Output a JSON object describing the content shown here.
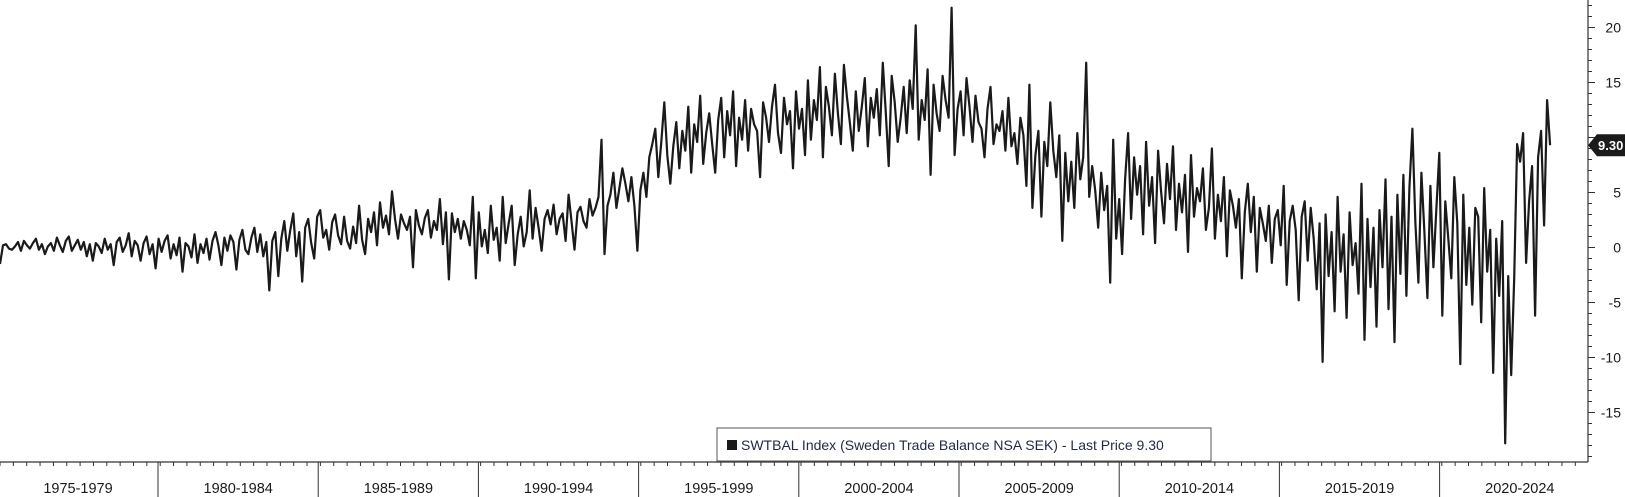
{
  "chart_data": {
    "type": "line",
    "series": [
      {
        "values": [
          -1.5,
          0.2,
          0.3,
          -0.1,
          -0.2,
          0.1,
          0.5,
          -0.3,
          0.6,
          0.2,
          -0.1,
          0.4,
          0.8,
          -0.2,
          0.3,
          -0.6,
          0.1,
          0.4,
          -0.3,
          0.9,
          0.2,
          -0.4,
          0.6,
          1.0,
          -0.3,
          0.2,
          0.7,
          -0.2,
          0.5,
          -0.8,
          0.3,
          -1.2,
          0.4,
          0.1,
          -0.5,
          0.8,
          -0.2,
          0.3,
          -1.6,
          0.5,
          0.9,
          -0.4,
          0.2,
          1.3,
          -0.8,
          0.6,
          0.2,
          -1.2,
          0.4,
          1.0,
          -0.6,
          0.3,
          -1.9,
          0.8,
          -0.4,
          0.6,
          1.1,
          -1.0,
          0.3,
          -0.7,
          0.9,
          -2.2,
          0.4,
          0.1,
          -0.9,
          1.2,
          -1.4,
          0.3,
          -0.5,
          0.8,
          -1.1,
          0.6,
          1.4,
          0.2,
          -1.6,
          0.9,
          -0.3,
          1.1,
          0.5,
          -2.0,
          0.7,
          1.6,
          -0.2,
          -0.6,
          0.9,
          1.8,
          -0.4,
          1.2,
          -0.8,
          0.5,
          -3.9,
          0.6,
          1.4,
          -2.6,
          0.8,
          2.4,
          -0.3,
          1.6,
          3.1,
          -0.8,
          1.4,
          -3.1,
          1.8,
          2.6,
          0.4,
          -1.0,
          2.8,
          3.4,
          0.9,
          1.6,
          -0.2,
          2.3,
          3.0,
          1.1,
          0.3,
          2.8,
          0.6,
          -0.1,
          1.9,
          0.4,
          3.8,
          0.7,
          -0.6,
          2.6,
          1.4,
          3.2,
          0.2,
          4.1,
          1.8,
          2.9,
          1.2,
          5.1,
          2.6,
          0.8,
          3.0,
          2.2,
          1.6,
          2.8,
          -1.8,
          3.4,
          2.0,
          1.2,
          2.7,
          3.4,
          0.9,
          2.4,
          1.6,
          4.4,
          0.3,
          3.2,
          -2.9,
          3.1,
          1.4,
          2.6,
          0.8,
          2.4,
          1.6,
          0.2,
          4.6,
          -2.8,
          3.2,
          0.1,
          1.6,
          -0.5,
          3.8,
          0.7,
          1.8,
          -1.2,
          4.6,
          0.4,
          2.2,
          3.8,
          -1.6,
          1.2,
          2.8,
          0.1,
          1.4,
          5.2,
          0.8,
          3.6,
          1.8,
          -0.3,
          2.6,
          3.4,
          2.1,
          3.9,
          1.2,
          2.6,
          3.1,
          0.6,
          4.8,
          2.4,
          -0.2,
          3.2,
          3.7,
          2.4,
          1.8,
          4.4,
          2.9,
          3.6,
          4.6,
          9.8,
          -0.6,
          3.8,
          4.8,
          6.8,
          3.6,
          5.4,
          7.2,
          5.8,
          4.2,
          6.4,
          3.8,
          -0.3,
          5.2,
          6.8,
          4.6,
          8.2,
          9.4,
          10.8,
          6.4,
          9.6,
          13.2,
          8.4,
          5.8,
          9.2,
          11.4,
          7.2,
          10.6,
          8.8,
          12.8,
          6.8,
          11.2,
          9.6,
          13.8,
          7.6,
          10.4,
          12.2,
          9.4,
          6.8,
          11.6,
          13.6,
          8.2,
          12.4,
          10.2,
          14.2,
          7.4,
          11.8,
          9.8,
          13.4,
          8.8,
          12.6,
          11.2,
          10.6,
          6.4,
          13.2,
          11.8,
          9.6,
          12.8,
          14.8,
          10.4,
          8.6,
          13.6,
          11.2,
          12.4,
          7.2,
          14.2,
          10.8,
          12.6,
          8.4,
          15.2,
          9.8,
          13.4,
          11.6,
          16.4,
          8.2,
          14.6,
          12.8,
          10.2,
          15.8,
          12.2,
          9.4,
          16.6,
          13.8,
          11.4,
          8.8,
          14.2,
          10.6,
          12.8,
          15.4,
          9.2,
          13.6,
          11.8,
          14.4,
          10.2,
          16.8,
          12.4,
          7.4,
          15.6,
          13.2,
          9.6,
          11.8,
          14.6,
          10.4,
          15.2,
          12.6,
          20.2,
          9.8,
          13.4,
          11.6,
          16.2,
          6.6,
          14.8,
          12.2,
          10.6,
          15.6,
          13.4,
          11.8,
          21.8,
          8.4,
          12.6,
          14.2,
          10.2,
          15.4,
          12.8,
          9.6,
          13.8,
          11.4,
          10.8,
          8.2,
          12.6,
          14.6,
          9.4,
          11.2,
          10.6,
          12.4,
          8.8,
          13.6,
          9.2,
          10.4,
          7.6,
          11.8,
          10.2,
          5.6,
          14.8,
          3.6,
          8.4,
          10.6,
          2.8,
          9.6,
          7.4,
          13.2,
          8.8,
          6.4,
          10.2,
          0.6,
          8.6,
          4.2,
          7.8,
          3.6,
          10.4,
          6.2,
          8.2,
          16.8,
          4.6,
          7.4,
          5.2,
          1.8,
          6.8,
          3.4,
          5.6,
          -3.2,
          9.8,
          0.8,
          4.4,
          -0.6,
          6.2,
          10.4,
          2.6,
          8.2,
          4.8,
          7.4,
          1.2,
          9.6,
          3.8,
          6.4,
          0.4,
          8.8,
          5.2,
          2.2,
          7.6,
          4.4,
          9.2,
          1.6,
          5.8,
          3.2,
          6.6,
          -0.4,
          8.4,
          2.8,
          5.4,
          4.2,
          7.2,
          1.6,
          3.6,
          9.0,
          0.8,
          4.8,
          2.4,
          6.4,
          -0.8,
          5.2,
          3.8,
          1.8,
          4.4,
          -2.8,
          3.2,
          5.8,
          1.4,
          4.6,
          -2.2,
          3.6,
          2.2,
          0.6,
          3.8,
          -1.4,
          2.6,
          3.4,
          0.2,
          5.6,
          -3.4,
          2.4,
          3.8,
          1.6,
          -4.8,
          2.8,
          4.2,
          -1.2,
          3.6,
          0.8,
          -3.8,
          2.2,
          -10.4,
          3.0,
          -2.6,
          1.4,
          -5.8,
          4.6,
          -2.2,
          1.2,
          -6.4,
          3.2,
          -1.6,
          0.4,
          -4.2,
          5.8,
          -8.4,
          2.6,
          -3.6,
          1.8,
          -7.2,
          3.4,
          -1.8,
          6.2,
          -5.6,
          2.8,
          -8.6,
          4.8,
          -2.4,
          6.6,
          -4.4,
          5.4,
          10.8,
          2.2,
          -3.2,
          6.8,
          1.4,
          -4.6,
          5.6,
          -1.8,
          3.4,
          8.6,
          -6.2,
          4.2,
          0.8,
          -2.8,
          6.4,
          2.2,
          -10.6,
          4.8,
          -3.4,
          1.8,
          -5.2,
          3.6,
          2.8,
          -6.8,
          5.4,
          -2.2,
          1.6,
          -11.4,
          0.8,
          -4.4,
          2.4,
          -17.8,
          -2.6,
          -11.6,
          -2.8,
          9.4,
          7.8,
          10.4,
          -1.4,
          4.2,
          7.4,
          -6.2,
          8.2,
          10.6,
          2.0,
          13.4,
          9.3
        ]
      }
    ],
    "x_category_labels": [
      "1975-1979",
      "1980-1984",
      "1985-1989",
      "1990-1994",
      "1995-1999",
      "2000-2004",
      "2005-2009",
      "2010-2014",
      "2015-2019",
      "2020-2024"
    ],
    "y_ticks": [
      -15,
      -10,
      -5,
      0,
      5,
      10,
      15,
      20
    ],
    "ylim": [
      -19.5,
      22.5
    ],
    "last_price": "9.30",
    "legend": "SWTBAL Index (Sweden Trade Balance NSA SEK) - Last Price 9.30",
    "colors": {
      "line": "#1a1a1a",
      "axis": "#333333",
      "badge": "#1a1a1a",
      "legend_border": "#555555"
    },
    "grid": false,
    "legend_position": "bottom-center"
  }
}
